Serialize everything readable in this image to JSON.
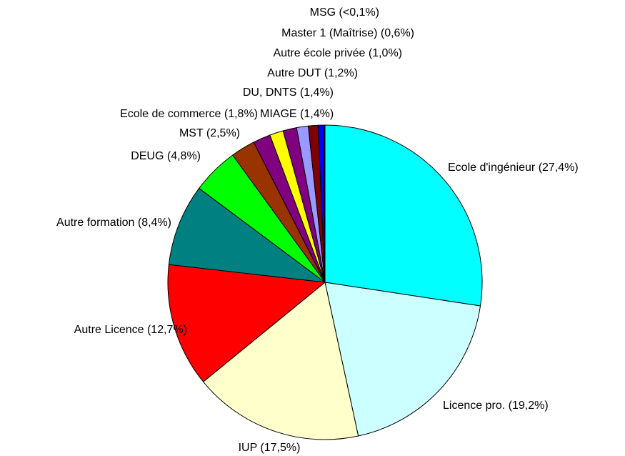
{
  "chart_data": {
    "type": "pie",
    "categories": [
      "Ecole d'ingénieur",
      "Licence pro.",
      "IUP",
      "Autre Licence",
      "Autre formation",
      "DEUG",
      "MST",
      "Ecole de commerce",
      "MIAGE",
      "DU, DNTS",
      "Autre DUT",
      "Autre école privée",
      "Master 1 (Maîtrise)",
      "MSG"
    ],
    "values": [
      27.4,
      19.2,
      17.5,
      12.7,
      8.4,
      4.8,
      2.5,
      1.8,
      1.4,
      1.4,
      1.2,
      1.0,
      0.6,
      0.1
    ],
    "value_labels": [
      "(27,4%)",
      "(19,2%)",
      "(17,5%)",
      "(12,7%)",
      "(8,4%)",
      "(4,8%)",
      "(2,5%)",
      "(1,8%)",
      "(1,4%)",
      "(1,4%)",
      "(1,2%)",
      "(1,0%)",
      "(0,6%)",
      "(<0,1%)"
    ],
    "colors": [
      "#00ffff",
      "#ccffff",
      "#ffffcc",
      "#ff0000",
      "#008080",
      "#00ff00",
      "#993300",
      "#800080",
      "#ffff00",
      "#800080",
      "#9999ff",
      "#800000",
      "#0000ff",
      "#000080"
    ]
  }
}
